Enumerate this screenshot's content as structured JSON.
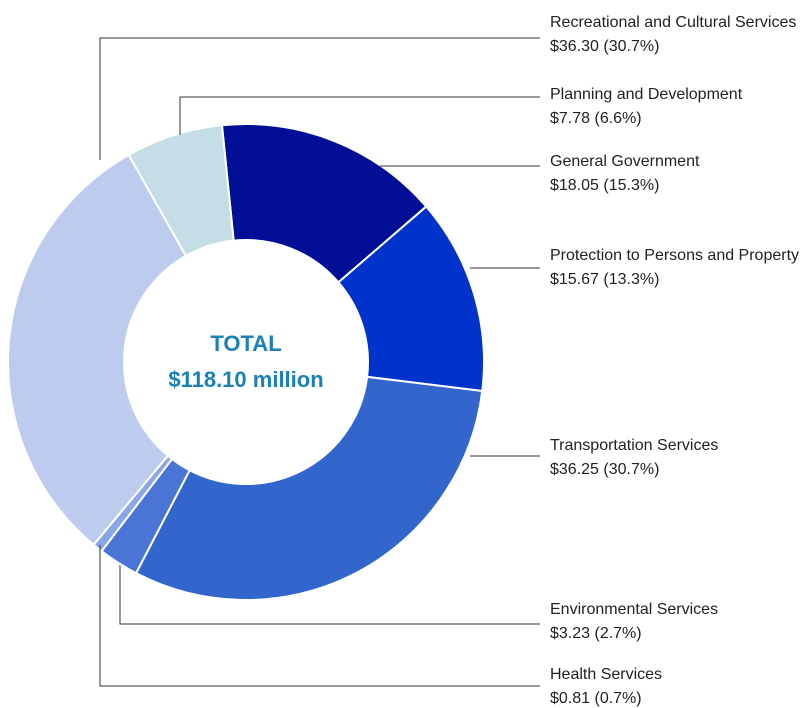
{
  "chart_data": {
    "type": "donut",
    "center_label": [
      "TOTAL",
      "$118.10 million"
    ],
    "categories": [
      "General Government",
      "Protection to Persons and Property",
      "Transportation Services",
      "Environmental Services",
      "Health Services",
      "Recreational and Cultural Services",
      "Planning and Development"
    ],
    "values": [
      18.05,
      15.67,
      36.25,
      3.23,
      0.81,
      36.3,
      7.78
    ],
    "value_labels": [
      "$18.05 (15.3%)",
      "$15.67 (13.3%)",
      "$36.25 (30.7%)",
      "$3.23 (2.7%)",
      "$0.81 (0.7%)",
      "$36.30 (30.7%)",
      "$7.78 (6.6%)"
    ],
    "colors": [
      "#000f96",
      "#0033cc",
      "#3366cc",
      "#4a74d6",
      "#8aa6e6",
      "#bccbee",
      "#c5dde6"
    ]
  }
}
